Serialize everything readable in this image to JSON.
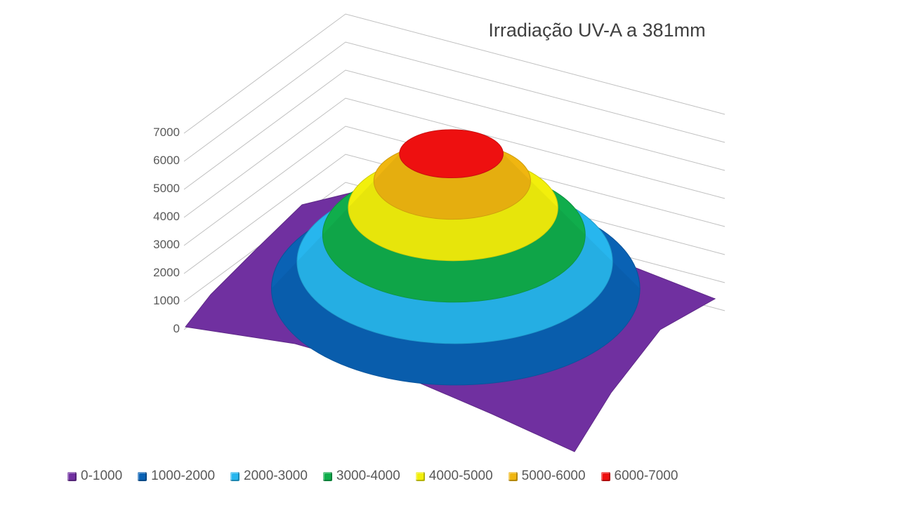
{
  "chart_data": {
    "type": "surface",
    "title": "Irradiação UV-A a 381mm",
    "zlim": [
      0,
      7000
    ],
    "z_ticks": [
      "0",
      "1000",
      "2000",
      "3000",
      "4000",
      "5000",
      "6000",
      "7000"
    ],
    "bands": [
      {
        "label": "0-1000",
        "min": 0,
        "max": 1000,
        "color": "#7030a0"
      },
      {
        "label": "1000-2000",
        "min": 1000,
        "max": 2000,
        "color": "#0a62b4"
      },
      {
        "label": "2000-3000",
        "min": 2000,
        "max": 3000,
        "color": "#27b6ee"
      },
      {
        "label": "3000-4000",
        "min": 3000,
        "max": 4000,
        "color": "#10ad4c"
      },
      {
        "label": "4000-5000",
        "min": 4000,
        "max": 5000,
        "color": "#f2ef0c"
      },
      {
        "label": "5000-6000",
        "min": 5000,
        "max": 6000,
        "color": "#f0b610"
      },
      {
        "label": "6000-7000",
        "min": 6000,
        "max": 7000,
        "color": "#ee1010"
      }
    ],
    "peak_value": 6500,
    "grid": true,
    "legend_position": "bottom"
  }
}
